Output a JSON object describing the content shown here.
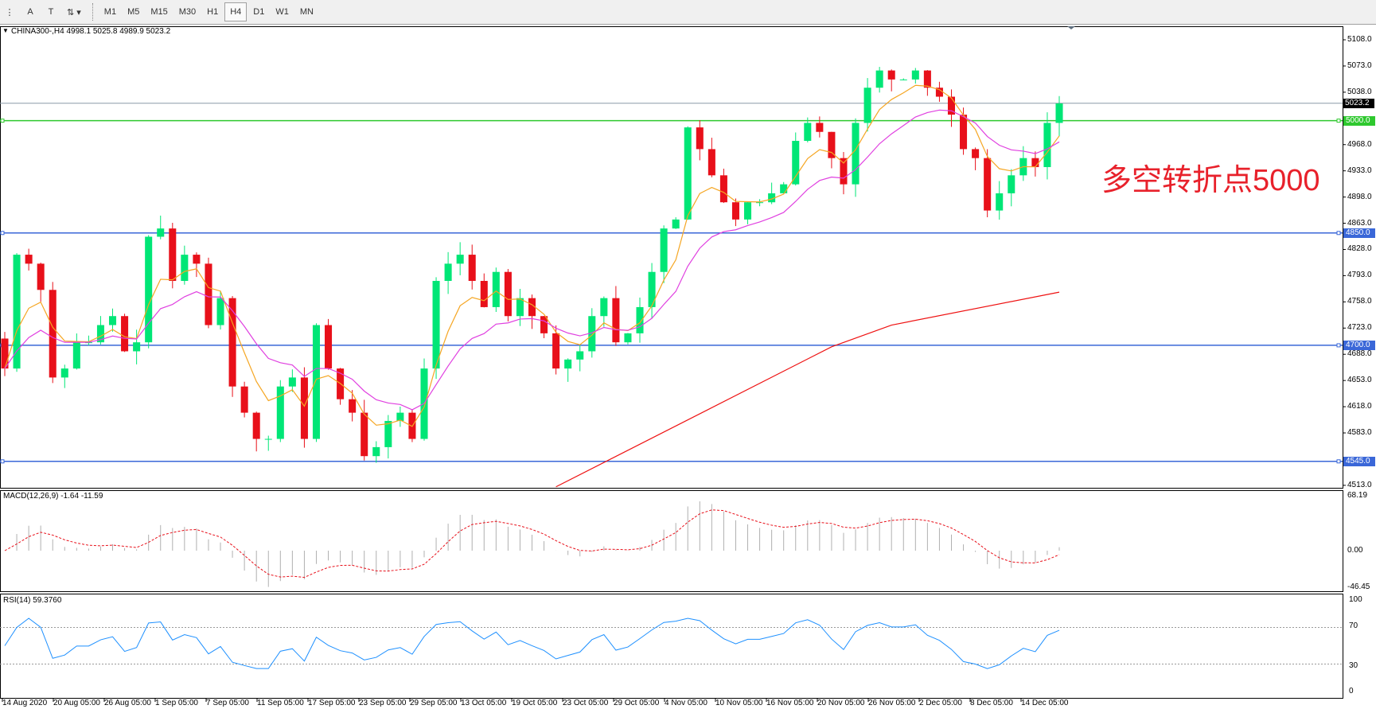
{
  "toolbar": {
    "tools": [
      "crosshair-icon",
      "A",
      "T",
      "arrows-icon"
    ],
    "timeframes": [
      "M1",
      "M5",
      "M15",
      "M30",
      "H1",
      "H4",
      "D1",
      "W1",
      "MN"
    ],
    "active": "H4"
  },
  "chart": {
    "header": "CHINA300-,H4  4998.1 5025.8 4989.9 5023.2",
    "symbol": "CHINA300-",
    "timeframe": "H4",
    "last_price": "5023.2",
    "price_ticks": [
      "5108.0",
      "5073.0",
      "5038.0",
      "4968.0",
      "4933.0",
      "4898.0",
      "4863.0",
      "4828.0",
      "4793.0",
      "4758.0",
      "4723.0",
      "4688.0",
      "4653.0",
      "4618.0",
      "4583.0",
      "4513.0"
    ],
    "levels": [
      {
        "value": 5000.0,
        "label": "5000.0",
        "color": "#2ec82e"
      },
      {
        "value": 4850.0,
        "label": "4850.0",
        "color": "#3a67d8"
      },
      {
        "value": 4700.0,
        "label": "4700.0",
        "color": "#3a67d8"
      },
      {
        "value": 4545.0,
        "label": "4545.0",
        "color": "#3a67d8"
      }
    ],
    "annotation": "多空转折点5000",
    "colors": {
      "bull": "#00e676",
      "bear": "#e8101a",
      "ma_fast": "#f5a623",
      "ma_mid": "#e040e0",
      "ma_long": "#ee1111"
    },
    "closes": [
      4669,
      4821,
      4809,
      4774,
      4657,
      4669,
      4704,
      4704,
      4727,
      4739,
      4692,
      4704,
      4845,
      4856,
      4786,
      4821,
      4809,
      4727,
      4763,
      4645,
      4610,
      4575,
      4575,
      4645,
      4657,
      4575,
      4727,
      4669,
      4628,
      4610,
      4552,
      4564,
      4599,
      4610,
      4575,
      4669,
      4786,
      4809,
      4821,
      4786,
      4751,
      4798,
      4739,
      4763,
      4739,
      4716,
      4669,
      4681,
      4692,
      4739,
      4763,
      4704,
      4716,
      4751,
      4798,
      4856,
      4868,
      4991,
      4962,
      4927,
      4891,
      4868,
      4891,
      4891,
      4903,
      4915,
      4973,
      4997,
      4985,
      4950,
      4915,
      4997,
      5044,
      5067,
      5055,
      5055,
      5067,
      5044,
      5032,
      5008,
      4962,
      4950,
      4880,
      4903,
      4927,
      4950,
      4938,
      4997,
      5023
    ],
    "ma_long": [
      [
        46,
        4511
      ],
      [
        69,
        4698
      ],
      [
        74,
        4727
      ],
      [
        88,
        4771
      ]
    ]
  },
  "macd": {
    "label": "MACD(12,26,9) -1.64 -11.59",
    "ticks": [
      "68.19",
      "0.00",
      "-46.45"
    ]
  },
  "rsi": {
    "label": "RSI(14) 59.3760",
    "ticks": [
      "100",
      "70",
      "30",
      "0"
    ]
  },
  "time_labels": [
    "14 Aug 2020",
    "20 Aug 05:00",
    "26 Aug 05:00",
    "1 Sep 05:00",
    "7 Sep 05:00",
    "11 Sep 05:00",
    "17 Sep 05:00",
    "23 Sep 05:00",
    "29 Sep 05:00",
    "13 Oct 05:00",
    "19 Oct 05:00",
    "23 Oct 05:00",
    "29 Oct 05:00",
    "4 Nov 05:00",
    "10 Nov 05:00",
    "16 Nov 05:00",
    "20 Nov 05:00",
    "26 Nov 05:00",
    "2 Dec 05:00",
    "8 Dec 05:00",
    "14 Dec 05:00"
  ]
}
